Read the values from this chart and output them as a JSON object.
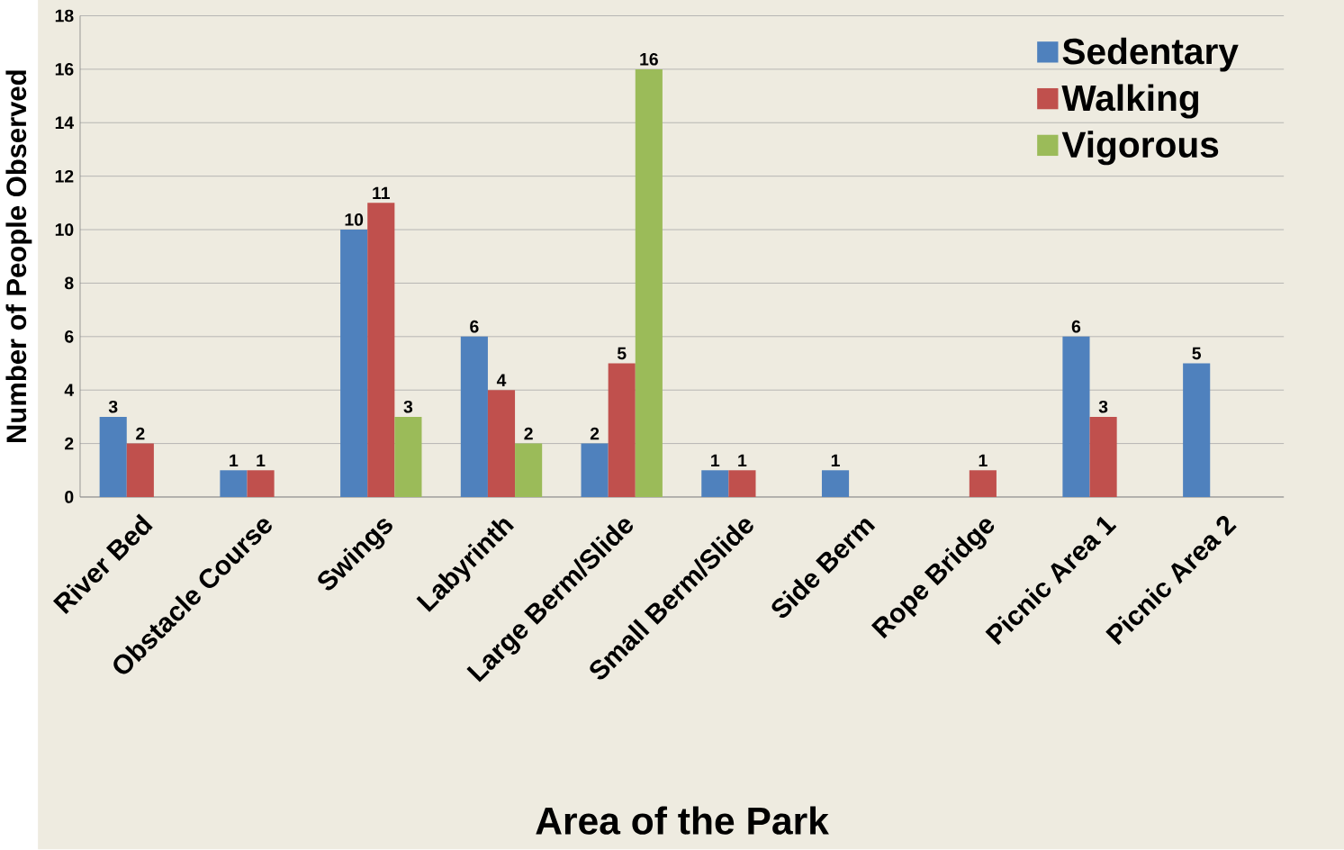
{
  "chart_data": {
    "type": "bar",
    "xlabel": "Area of the Park",
    "ylabel": "Number of People Observed",
    "categories": [
      "River Bed",
      "Obstacle Course",
      "Swings",
      "Labyrinth",
      "Large Berm/Slide",
      "Small Berm/Slide",
      "Side Berm",
      "Rope Bridge",
      "Picnic Area 1",
      "Picnic Area 2"
    ],
    "series": [
      {
        "name": "Sedentary",
        "color": "#4f81bd",
        "values": [
          3,
          1,
          10,
          6,
          2,
          1,
          1,
          null,
          6,
          5
        ]
      },
      {
        "name": "Walking",
        "color": "#c0504d",
        "values": [
          2,
          1,
          11,
          4,
          5,
          1,
          null,
          1,
          3,
          null
        ]
      },
      {
        "name": "Vigorous",
        "color": "#9bbb59",
        "values": [
          null,
          null,
          3,
          2,
          16,
          null,
          null,
          null,
          null,
          null
        ]
      }
    ],
    "ylim": [
      0,
      18
    ],
    "yticks": [
      0,
      2,
      4,
      6,
      8,
      10,
      12,
      14,
      16,
      18
    ],
    "grid": "y",
    "legend": "top right",
    "data_labels": true
  }
}
